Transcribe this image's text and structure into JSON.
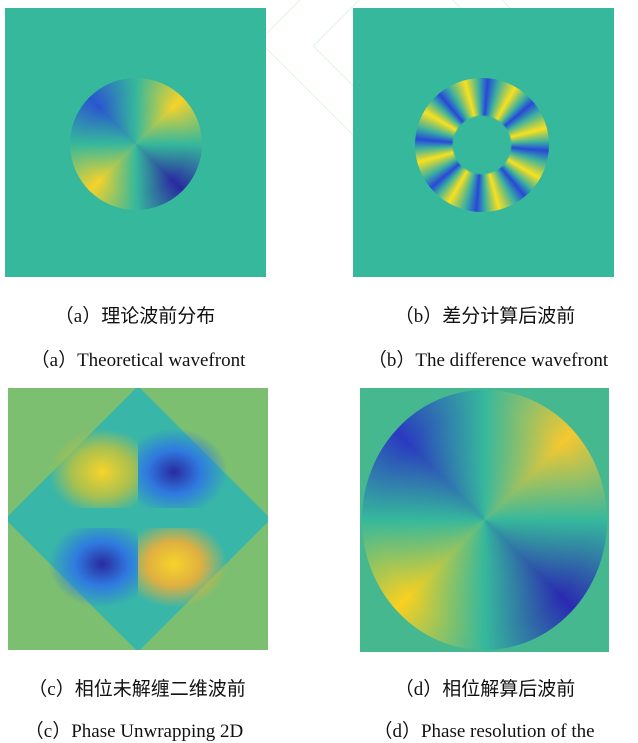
{
  "panels": [
    {
      "caption_zh": "（a）理论波前分布",
      "caption_en": "（a）Theoretical wavefront"
    },
    {
      "caption_zh": "（b）差分计算后波前",
      "caption_en": "（b）The difference wavefront"
    },
    {
      "caption_zh": "（c）相位未解缠二维波前",
      "caption_en": "（c）Phase Unwrapping 2D"
    },
    {
      "caption_zh": "（d）相位解算后波前",
      "caption_en": "（d）Phase resolution of the"
    }
  ]
}
